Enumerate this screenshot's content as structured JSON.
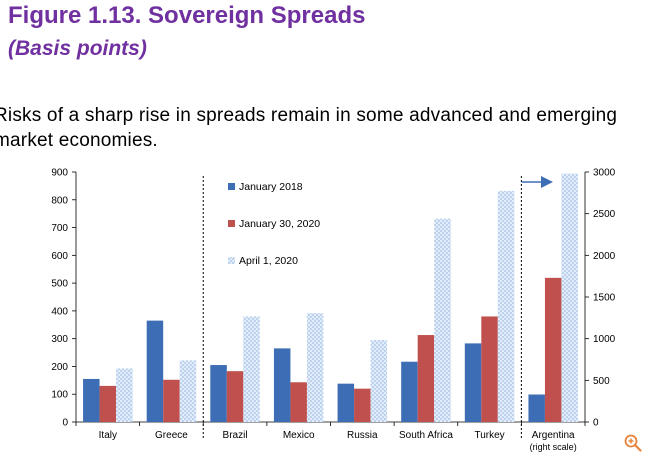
{
  "header": {
    "title": "Figure 1.13. Sovereign Spreads",
    "subtitle": "(Basis points)"
  },
  "bullet": {
    "text": "Risks of a  sharp rise in spreads remain in some advanced and emerging market economies."
  },
  "icons": {
    "zoom": "zoom-in-icon"
  },
  "colors": {
    "title": "#7030a0",
    "series": [
      "#3d6db5",
      "#c0504d",
      "#8eb4e3"
    ]
  },
  "chart_data": {
    "type": "bar",
    "title": "Sovereign Spreads",
    "ylabel": "Basis points",
    "categories": [
      "Italy",
      "Greece",
      "Brazil",
      "Mexico",
      "Russia",
      "South Africa",
      "Turkey",
      "Argentina"
    ],
    "category_notes": [
      "",
      "",
      "",
      "",
      "",
      "",
      "",
      "(right scale)"
    ],
    "series": [
      {
        "name": "January 2018",
        "values": [
          155,
          365,
          205,
          265,
          138,
          217,
          283,
          330
        ]
      },
      {
        "name": "January 30, 2020",
        "values": [
          130,
          152,
          183,
          143,
          120,
          313,
          380,
          1730
        ]
      },
      {
        "name": "April 1, 2020",
        "values": [
          193,
          222,
          380,
          392,
          295,
          732,
          832,
          2980
        ]
      }
    ],
    "secondary_axis_category": "Argentina",
    "ylim_left": [
      0,
      900
    ],
    "yticks_left": [
      0,
      100,
      200,
      300,
      400,
      500,
      600,
      700,
      800,
      900
    ],
    "ylim_right": [
      0,
      3000
    ],
    "yticks_right": [
      0,
      500,
      1000,
      1500,
      2000,
      2500,
      3000
    ],
    "separators_after": [
      "Greece",
      "Turkey"
    ],
    "annotation": "arrow pointing right toward off-scale Argentina bar",
    "legend_position": "top-left, between separators"
  }
}
